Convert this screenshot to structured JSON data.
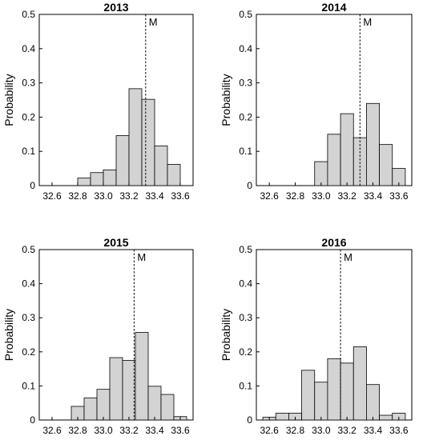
{
  "chart_data": [
    {
      "type": "bar",
      "title": "2013",
      "ylabel": "Probability",
      "xlabel": "",
      "bin_width": 0.1,
      "bin_edges": [
        32.8,
        32.9,
        33.0,
        33.1,
        33.2,
        33.3,
        33.4,
        33.5,
        33.6
      ],
      "values": [
        0.022,
        0.038,
        0.046,
        0.146,
        0.283,
        0.252,
        0.116,
        0.062
      ],
      "mean_label": "M",
      "mean": 33.33,
      "xlim": [
        32.5,
        33.7
      ],
      "ylim": [
        0,
        0.5
      ],
      "xticks": [
        "32.6",
        "32.8",
        "33.0",
        "33.2",
        "33.4",
        "33.6"
      ],
      "yticks": [
        "0",
        "0.1",
        "0.2",
        "0.3",
        "0.4",
        "0.5"
      ]
    },
    {
      "type": "bar",
      "title": "2014",
      "ylabel": "Probability",
      "xlabel": "",
      "bin_width": 0.1,
      "bin_edges": [
        32.95,
        33.05,
        33.15,
        33.25,
        33.35,
        33.45,
        33.55
      ],
      "values": [
        0.07,
        0.15,
        0.21,
        0.14,
        0.24,
        0.12,
        0.05
      ],
      "mean_label": "M",
      "mean": 33.3,
      "xlim": [
        32.5,
        33.7
      ],
      "ylim": [
        0,
        0.5
      ],
      "xticks": [
        "32.6",
        "32.8",
        "33.0",
        "33.2",
        "33.4",
        "33.6"
      ],
      "yticks": [
        "0",
        "0.1",
        "0.2",
        "0.3",
        "0.4",
        "0.5"
      ]
    },
    {
      "type": "bar",
      "title": "2015",
      "ylabel": "Probability",
      "xlabel": "",
      "bin_width": 0.1,
      "bin_edges": [
        32.75,
        32.85,
        32.95,
        33.05,
        33.15,
        33.25,
        33.35,
        33.45,
        33.55
      ],
      "values": [
        0.04,
        0.065,
        0.09,
        0.183,
        0.175,
        0.257,
        0.099,
        0.075,
        0.01
      ],
      "mean_label": "M",
      "mean": 33.24,
      "xlim": [
        32.5,
        33.7
      ],
      "ylim": [
        0,
        0.5
      ],
      "xticks": [
        "32.6",
        "32.8",
        "33.0",
        "33.2",
        "33.4",
        "33.6"
      ],
      "yticks": [
        "0",
        "0.1",
        "0.2",
        "0.3",
        "0.4",
        "0.5"
      ]
    },
    {
      "type": "bar",
      "title": "2016",
      "ylabel": "Probability",
      "xlabel": "",
      "bin_width": 0.1,
      "bin_edges": [
        32.55,
        32.65,
        32.75,
        32.85,
        32.95,
        33.05,
        33.15,
        33.25,
        33.35,
        33.45,
        33.55
      ],
      "values": [
        0.008,
        0.02,
        0.02,
        0.146,
        0.111,
        0.18,
        0.167,
        0.215,
        0.104,
        0.014,
        0.02
      ],
      "mean_label": "M",
      "mean": 33.15,
      "xlim": [
        32.5,
        33.7
      ],
      "ylim": [
        0,
        0.5
      ],
      "xticks": [
        "32.6",
        "32.8",
        "33.0",
        "33.2",
        "33.4",
        "33.6"
      ],
      "yticks": [
        "0",
        "0.1",
        "0.2",
        "0.3",
        "0.4",
        "0.5"
      ]
    }
  ],
  "colors": {
    "bar_fill": "#d3d3d3",
    "bar_stroke": "#000000",
    "axes": "#000000"
  }
}
